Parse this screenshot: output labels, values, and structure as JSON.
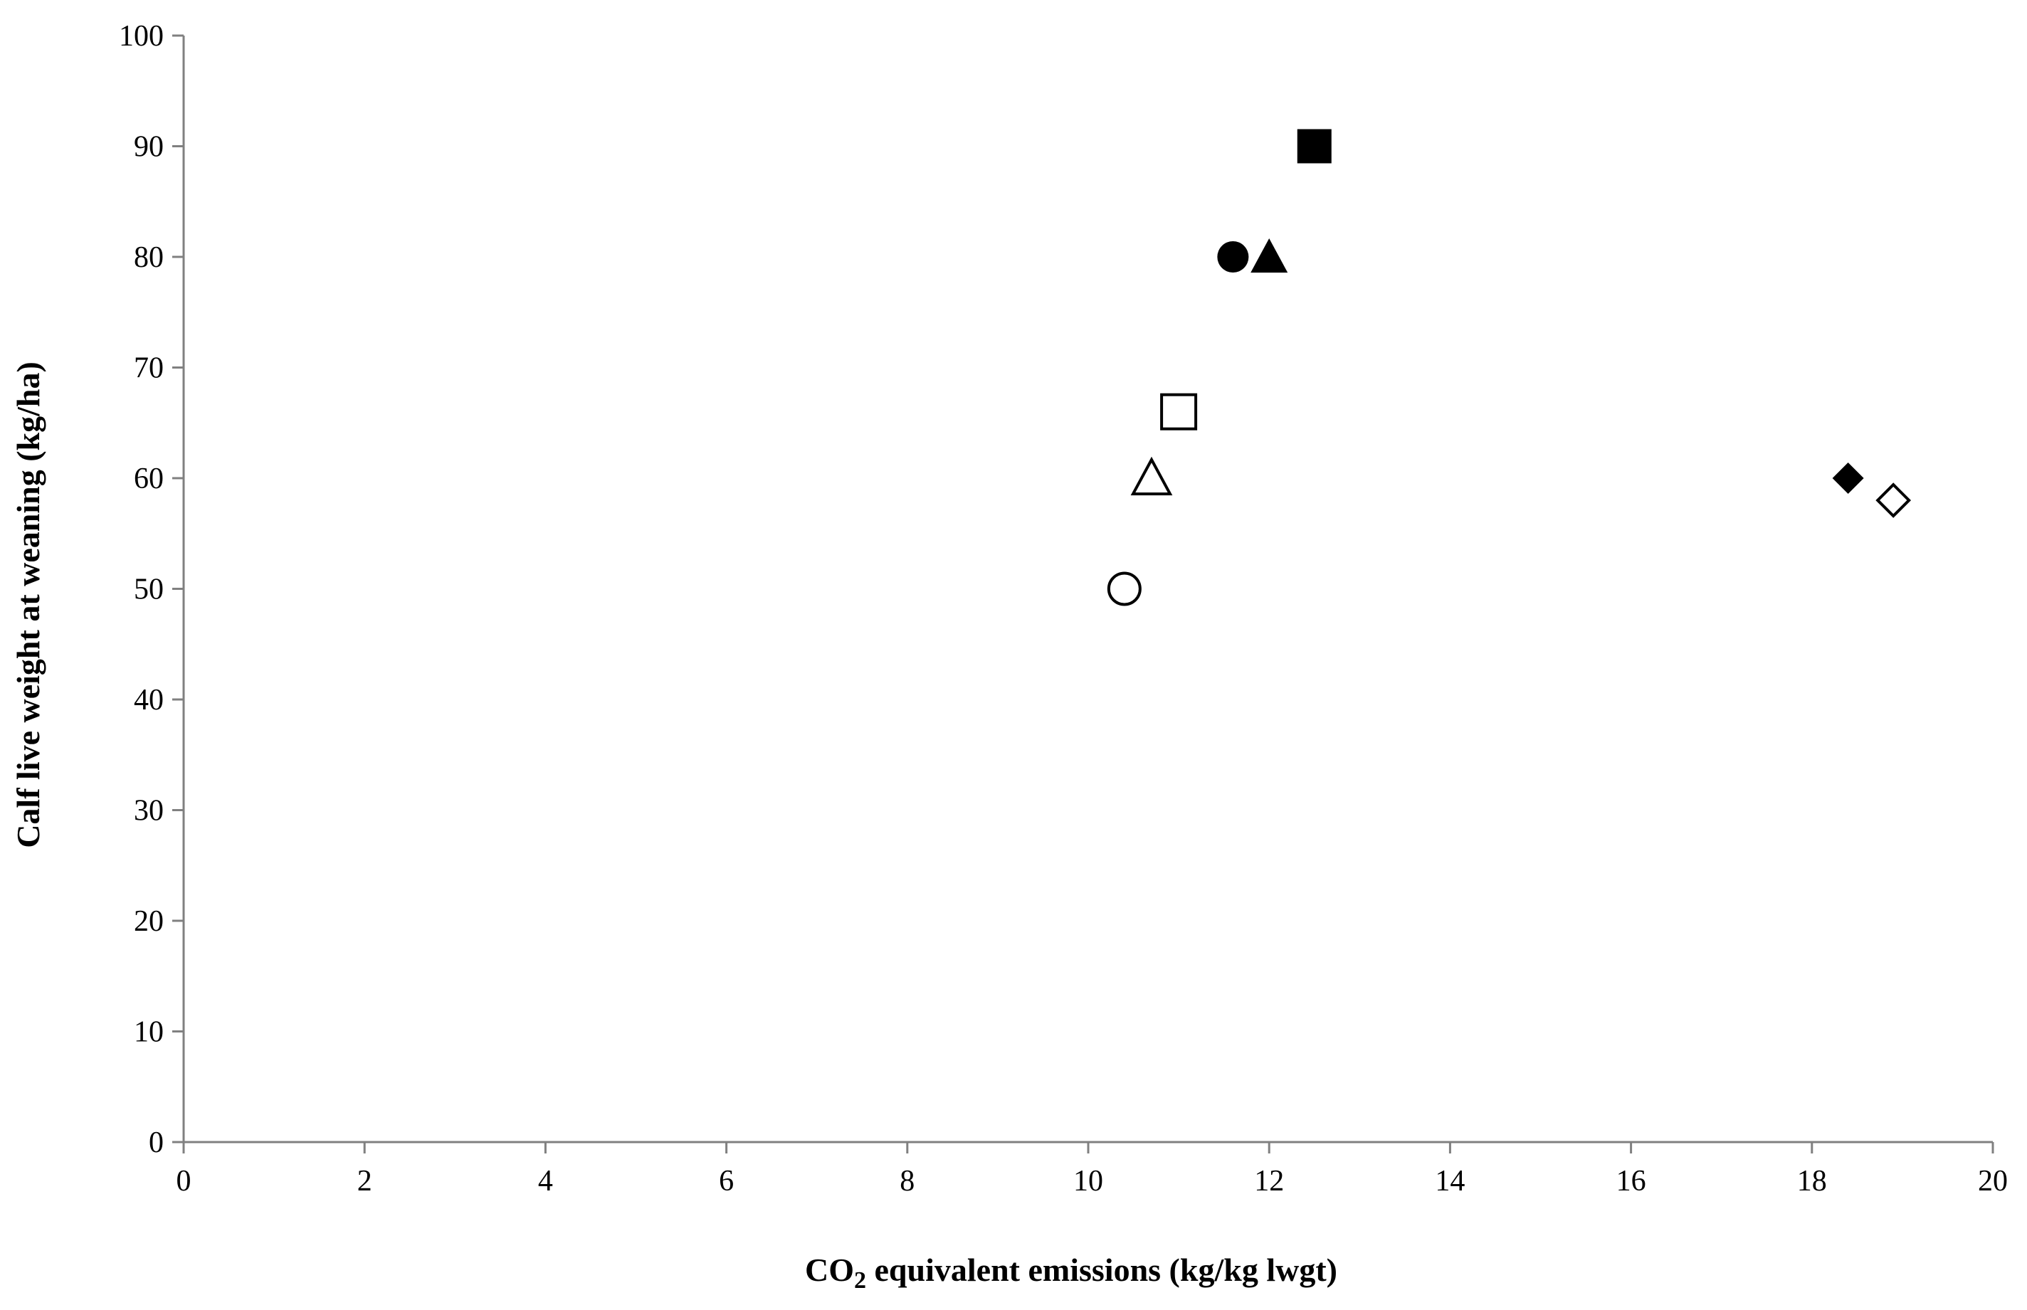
{
  "chart_data": {
    "type": "scatter",
    "title": "",
    "xlabel": "CO₂ equivalent  emissions (kg/kg lwgt)",
    "xlabel_parts": [
      "CO",
      "2",
      " equivalent  emissions (kg/kg lwgt)"
    ],
    "ylabel": "Calf live weight at weaning (kg/ha)",
    "xlim": [
      0,
      20
    ],
    "ylim": [
      0,
      100
    ],
    "xticks": [
      0,
      2,
      4,
      6,
      8,
      10,
      12,
      14,
      16,
      18,
      20
    ],
    "yticks": [
      0,
      10,
      20,
      30,
      40,
      50,
      60,
      70,
      80,
      90,
      100
    ],
    "grid": false,
    "legend": "none",
    "colors": {
      "marker": "#000000",
      "axis": "#808080",
      "hollow_fill": "#ffffff"
    },
    "points": [
      {
        "x": 10.4,
        "y": 50,
        "marker": "circle",
        "filled": false
      },
      {
        "x": 10.7,
        "y": 60,
        "marker": "triangle",
        "filled": false
      },
      {
        "x": 11.0,
        "y": 66,
        "marker": "square",
        "filled": false
      },
      {
        "x": 11.6,
        "y": 80,
        "marker": "circle",
        "filled": true
      },
      {
        "x": 12.0,
        "y": 80,
        "marker": "triangle",
        "filled": true
      },
      {
        "x": 12.5,
        "y": 90,
        "marker": "square",
        "filled": true
      },
      {
        "x": 18.4,
        "y": 60,
        "marker": "diamond",
        "filled": true
      },
      {
        "x": 18.9,
        "y": 58,
        "marker": "diamond",
        "filled": false
      }
    ]
  }
}
